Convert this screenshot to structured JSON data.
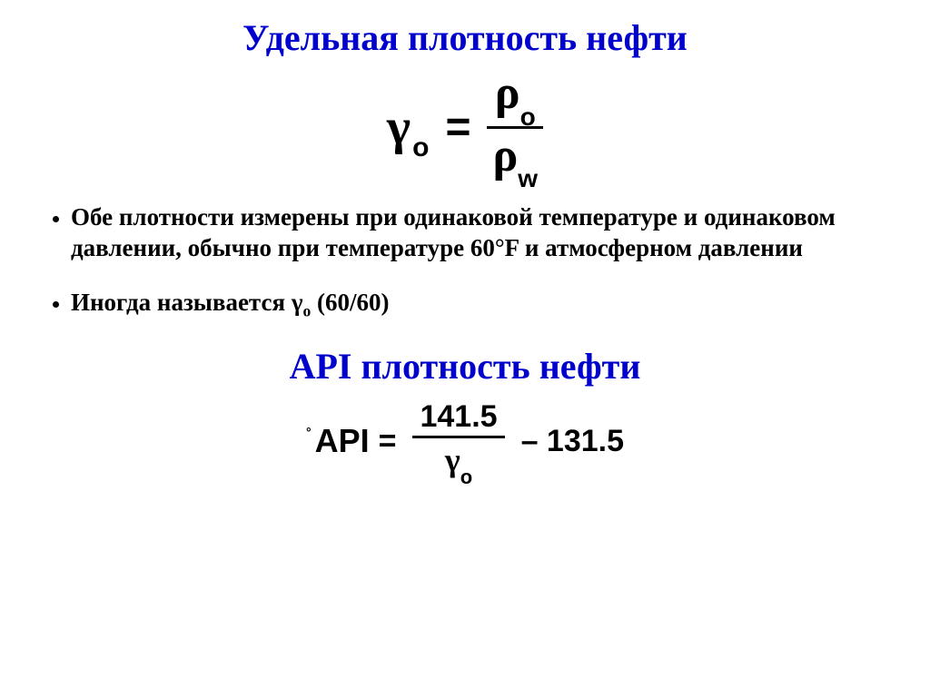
{
  "title1": "Удельная плотность нефти",
  "formula1": {
    "lhs_symbol": "γ",
    "lhs_sub": "o",
    "eq": "=",
    "num_symbol": "ρ",
    "num_sub": "o",
    "den_symbol": "ρ",
    "den_sub": "w"
  },
  "bullets": [
    "Обе плотности измерены при одинаковой температуре и одинаковом давлении, обычно при температуре 60°F и атмосферном давлении",
    "Иногда называется γₒ (60/60)"
  ],
  "bullet2_prefix": "Иногда называется ",
  "bullet2_gamma": "γ",
  "bullet2_sub": "o",
  "bullet2_suffix": " (60/60)",
  "title2": "API плотность нефти",
  "formula2": {
    "deg": "°",
    "api": "API",
    "eq": "=",
    "num": "141.5",
    "den_symbol": "γ",
    "den_sub": "o",
    "tail": "– 131.5"
  },
  "colors": {
    "title": "#0000cc",
    "text": "#000000",
    "background": "#ffffff"
  },
  "fontsizes": {
    "title": 40,
    "bullet": 27,
    "formula_main": 48,
    "formula_api": 34
  }
}
